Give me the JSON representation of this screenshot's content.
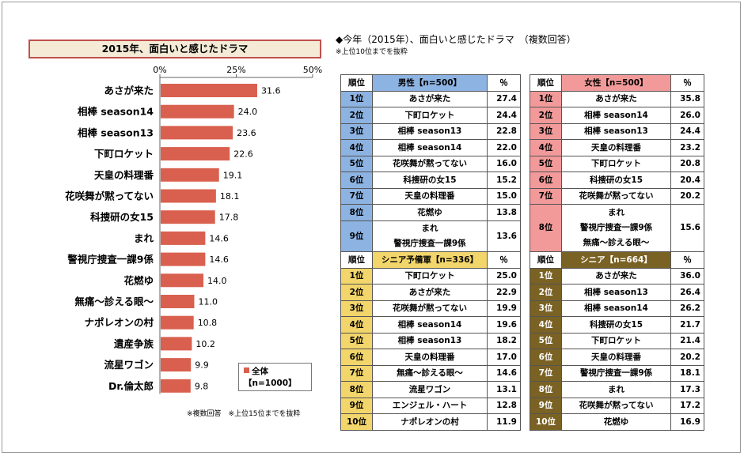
{
  "chart_title": "2015年、面白いと感じたドラマ",
  "chart_data": {
    "type": "bar",
    "orientation": "horizontal",
    "categories": [
      "あさが来た",
      "相棒 season14",
      "相棒 season13",
      "下町ロケット",
      "天皇の料理番",
      "花咲舞が黙ってない",
      "科捜研の女15",
      "まれ",
      "警視庁捜査一課9係",
      "花燃ゆ",
      "無痛～診える眼～",
      "ナポレオンの村",
      "遺産争族",
      "流星ワゴン",
      "Dr.倫太郎"
    ],
    "series": [
      {
        "name": "全体",
        "values": [
          31.6,
          24.0,
          23.6,
          22.6,
          19.1,
          18.1,
          17.8,
          14.6,
          14.6,
          14.0,
          11.0,
          10.8,
          10.2,
          9.9,
          9.8
        ]
      }
    ],
    "value_labels": [
      "31.6",
      "24.0",
      "23.6",
      "22.6",
      "19.1",
      "18.1",
      "17.8",
      "14.6",
      "14.6",
      "14.0",
      "11.0",
      "10.8",
      "10.2",
      "9.9",
      "9.8"
    ],
    "xlim": [
      0,
      50
    ],
    "ticks": [
      "0%",
      "25%",
      "50%"
    ],
    "bar_color": "#d9604e",
    "grid": false,
    "legend_position": "bottom-right"
  },
  "legend": {
    "line1": "全体",
    "line2": "【n=1000】"
  },
  "footnote_left": "※複数回答　※上位15位までを抜粋",
  "tables_heading": "◆今年（2015年）、面白いと感じたドラマ　（複数回答）",
  "tables_subheading": "※上位10位までを抜粋",
  "tables": {
    "male": {
      "header_rank": "順位",
      "header_group": "男性【n=500】",
      "header_pct": "％",
      "color": "#8db3e2",
      "rows": [
        {
          "rank": "1位",
          "name": "あさが来た",
          "pct": "27.4"
        },
        {
          "rank": "2位",
          "name": "下町ロケット",
          "pct": "24.4"
        },
        {
          "rank": "3位",
          "name": "相棒 season13",
          "pct": "22.8"
        },
        {
          "rank": "4位",
          "name": "相棒 season14",
          "pct": "22.0"
        },
        {
          "rank": "5位",
          "name": "花咲舞が黙ってない",
          "pct": "16.0"
        },
        {
          "rank": "6位",
          "name": "科捜研の女15",
          "pct": "15.2"
        },
        {
          "rank": "7位",
          "name": "天皇の料理番",
          "pct": "15.0"
        },
        {
          "rank": "8位",
          "name": "花燃ゆ",
          "pct": "13.8"
        },
        {
          "rank": "9位",
          "names": [
            "まれ",
            "警視庁捜査一課9係"
          ],
          "pct": "13.6"
        }
      ]
    },
    "female": {
      "header_rank": "順位",
      "header_group": "女性【n=500】",
      "header_pct": "％",
      "color": "#f29a9a",
      "rows": [
        {
          "rank": "1位",
          "name": "あさが来た",
          "pct": "35.8"
        },
        {
          "rank": "2位",
          "name": "相棒 season14",
          "pct": "26.0"
        },
        {
          "rank": "3位",
          "name": "相棒 season13",
          "pct": "24.4"
        },
        {
          "rank": "4位",
          "name": "天皇の料理番",
          "pct": "23.2"
        },
        {
          "rank": "5位",
          "name": "下町ロケット",
          "pct": "20.8"
        },
        {
          "rank": "6位",
          "name": "科捜研の女15",
          "pct": "20.4"
        },
        {
          "rank": "7位",
          "name": "花咲舞が黙ってない",
          "pct": "20.2"
        },
        {
          "rank": "8位",
          "names": [
            "まれ",
            "警視庁捜査一課9係",
            "無痛～診える眼～"
          ],
          "pct": "15.6"
        }
      ]
    },
    "senior_reserve": {
      "header_rank": "順位",
      "header_group": "シニア予備軍【n=336】",
      "header_pct": "％",
      "color": "#f2d56b",
      "rows": [
        {
          "rank": "1位",
          "name": "下町ロケット",
          "pct": "25.0"
        },
        {
          "rank": "2位",
          "name": "あさが来た",
          "pct": "22.9"
        },
        {
          "rank": "3位",
          "name": "花咲舞が黙ってない",
          "pct": "19.9"
        },
        {
          "rank": "4位",
          "name": "相棒 season14",
          "pct": "19.6"
        },
        {
          "rank": "5位",
          "name": "相棒 season13",
          "pct": "18.2"
        },
        {
          "rank": "6位",
          "name": "天皇の料理番",
          "pct": "17.0"
        },
        {
          "rank": "7位",
          "name": "無痛～診える眼～",
          "pct": "14.6"
        },
        {
          "rank": "8位",
          "name": "流星ワゴン",
          "pct": "13.1"
        },
        {
          "rank": "9位",
          "name": "エンジェル・ハート",
          "pct": "12.8"
        },
        {
          "rank": "10位",
          "name": "ナポレオンの村",
          "pct": "11.9"
        }
      ]
    },
    "senior": {
      "header_rank": "順位",
      "header_group": "シニア【n=664】",
      "header_pct": "％",
      "color": "#7a6224",
      "rows": [
        {
          "rank": "1位",
          "name": "あさが来た",
          "pct": "36.0"
        },
        {
          "rank": "2位",
          "name": "相棒 season13",
          "pct": "26.4"
        },
        {
          "rank": "3位",
          "name": "相棒 season14",
          "pct": "26.2"
        },
        {
          "rank": "4位",
          "name": "科捜研の女15",
          "pct": "21.7"
        },
        {
          "rank": "5位",
          "name": "下町ロケット",
          "pct": "21.4"
        },
        {
          "rank": "6位",
          "name": "天皇の料理番",
          "pct": "20.2"
        },
        {
          "rank": "7位",
          "name": "警視庁捜査一課9係",
          "pct": "18.1"
        },
        {
          "rank": "8位",
          "name": "まれ",
          "pct": "17.3"
        },
        {
          "rank": "9位",
          "name": "花咲舞が黙ってない",
          "pct": "17.2"
        },
        {
          "rank": "10位",
          "name": "花燃ゆ",
          "pct": "16.9"
        }
      ]
    }
  }
}
